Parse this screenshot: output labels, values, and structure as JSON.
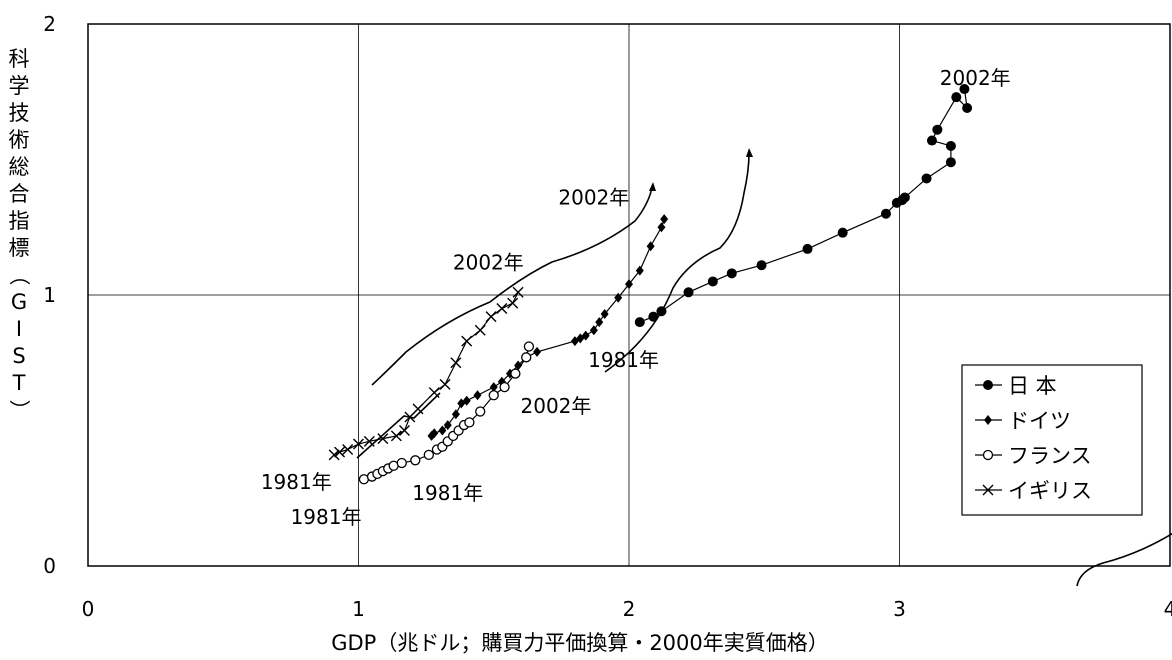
{
  "chart_data": {
    "type": "scatter",
    "title": "",
    "xlabel": "GDP（兆ドル；購買力平価換算・2000年実質価格）",
    "ylabel": "科学技術総合指標（GIST）",
    "xlim": [
      0,
      4
    ],
    "ylim": [
      0,
      2
    ],
    "x_ticks": [
      "0",
      "1",
      "2",
      "3",
      "4"
    ],
    "y_ticks": [
      "0",
      "1",
      "2"
    ],
    "grid": true,
    "legend_position": "right",
    "series": [
      {
        "name": "日 本",
        "marker": "filled-circle",
        "x": [
          2.04,
          2.09,
          2.12,
          2.22,
          2.31,
          2.38,
          2.49,
          2.66,
          2.79,
          2.95,
          2.99,
          3.01,
          3.02,
          3.1,
          3.19,
          3.19,
          3.12,
          3.14,
          3.21,
          3.25,
          3.24
        ],
        "y": [
          0.9,
          0.92,
          0.94,
          1.01,
          1.05,
          1.08,
          1.11,
          1.17,
          1.23,
          1.3,
          1.34,
          1.35,
          1.36,
          1.43,
          1.49,
          1.55,
          1.57,
          1.61,
          1.73,
          1.69,
          1.76
        ]
      },
      {
        "name": "ドイツ",
        "marker": "filled-diamond",
        "x": [
          1.27,
          1.28,
          1.31,
          1.33,
          1.36,
          1.38,
          1.4,
          1.44,
          1.5,
          1.53,
          1.56,
          1.59,
          1.62,
          1.66,
          1.8,
          1.82,
          1.84,
          1.87,
          1.89,
          1.91,
          1.96,
          2.0,
          2.04,
          2.08,
          2.12,
          2.13
        ],
        "y": [
          0.48,
          0.49,
          0.5,
          0.52,
          0.56,
          0.6,
          0.61,
          0.63,
          0.66,
          0.68,
          0.71,
          0.74,
          0.77,
          0.79,
          0.83,
          0.84,
          0.85,
          0.87,
          0.9,
          0.93,
          0.99,
          1.04,
          1.09,
          1.18,
          1.25,
          1.28
        ]
      },
      {
        "name": "フランス",
        "marker": "open-circle",
        "x": [
          1.02,
          1.05,
          1.07,
          1.09,
          1.11,
          1.13,
          1.16,
          1.21,
          1.26,
          1.29,
          1.31,
          1.33,
          1.35,
          1.37,
          1.39,
          1.41,
          1.45,
          1.5,
          1.54,
          1.58,
          1.62,
          1.63
        ],
        "y": [
          0.32,
          0.33,
          0.34,
          0.35,
          0.36,
          0.37,
          0.38,
          0.39,
          0.41,
          0.43,
          0.44,
          0.46,
          0.48,
          0.5,
          0.52,
          0.53,
          0.57,
          0.63,
          0.66,
          0.71,
          0.77,
          0.81
        ]
      },
      {
        "name": "イギリス",
        "marker": "x-cross",
        "x": [
          0.91,
          0.93,
          0.96,
          1.0,
          1.04,
          1.09,
          1.14,
          1.17,
          1.19,
          1.22,
          1.28,
          1.32,
          1.36,
          1.4,
          1.45,
          1.49,
          1.53,
          1.57,
          1.59
        ],
        "y": [
          0.41,
          0.42,
          0.43,
          0.45,
          0.46,
          0.47,
          0.48,
          0.5,
          0.55,
          0.58,
          0.64,
          0.67,
          0.75,
          0.83,
          0.87,
          0.92,
          0.95,
          0.97,
          1.01
        ]
      }
    ],
    "annotations": [
      {
        "text": "2002年",
        "x": 3.28,
        "y": 1.8
      },
      {
        "text": "2002年",
        "x": 1.87,
        "y": 1.36
      },
      {
        "text": "2002年",
        "x": 1.48,
        "y": 1.12
      },
      {
        "text": "1981年",
        "x": 1.98,
        "y": 0.76
      },
      {
        "text": "2002年",
        "x": 1.73,
        "y": 0.59
      },
      {
        "text": "1981年",
        "x": 0.77,
        "y": 0.31
      },
      {
        "text": "1981年",
        "x": 1.33,
        "y": 0.27
      },
      {
        "text": "1981年",
        "x": 0.88,
        "y": 0.18
      }
    ]
  }
}
